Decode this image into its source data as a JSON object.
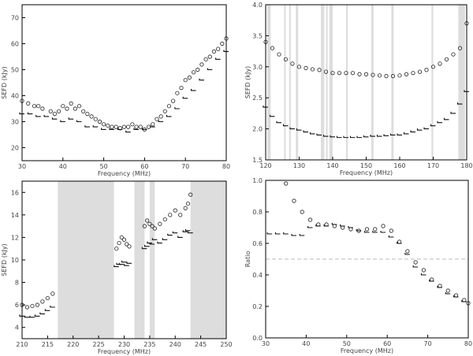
{
  "chart_data": [
    {
      "type": "scatter",
      "xlabel": "Frequency (MHz)",
      "ylabel": "SEFD (kJy)",
      "xlim": [
        30,
        80
      ],
      "ylim": [
        15,
        75
      ],
      "xticks": [
        "30",
        "40",
        "50",
        "60",
        "70",
        "80"
      ],
      "yticks": [
        "20",
        "30",
        "40",
        "50",
        "60",
        "70"
      ],
      "shaded_bands": [],
      "series": [
        {
          "marker": "circle",
          "x": [
            30,
            31.5,
            33,
            34,
            35,
            37,
            38,
            39,
            40,
            41,
            42,
            43,
            44,
            45,
            46,
            47,
            48,
            49,
            50,
            51,
            52,
            53,
            54,
            55,
            56,
            57,
            58,
            59,
            60,
            61,
            62,
            63,
            64,
            65,
            66,
            67,
            68,
            69,
            70,
            71,
            72,
            73,
            74,
            75,
            76,
            77,
            78,
            79,
            80
          ],
          "y": [
            38,
            37,
            36,
            36,
            35,
            34,
            33,
            34,
            36,
            35,
            37,
            35,
            36,
            34,
            33,
            32,
            31,
            30,
            29,
            28.5,
            28,
            28,
            27.5,
            28,
            28,
            29,
            28,
            28,
            27,
            28,
            29,
            31,
            32,
            34,
            36,
            38,
            41,
            43,
            46,
            47,
            49,
            50,
            52,
            54,
            55,
            57,
            58,
            60,
            62
          ]
        },
        {
          "marker": "step",
          "x": [
            30,
            32,
            34,
            36,
            38,
            40,
            42,
            44,
            46,
            48,
            50,
            52,
            54,
            56,
            58,
            60,
            62,
            64,
            66,
            68,
            70,
            72,
            74,
            76,
            78,
            80
          ],
          "y": [
            33,
            33,
            32,
            32,
            31,
            30,
            31,
            30,
            28,
            28,
            27,
            27,
            27,
            26,
            27,
            27,
            28,
            30,
            32,
            35,
            39,
            42,
            46,
            50,
            54,
            57
          ]
        }
      ]
    },
    {
      "type": "scatter",
      "xlabel": "Frequency (MHz)",
      "ylabel": "SEFD (kJy)",
      "xlim": [
        120,
        180
      ],
      "ylim": [
        1.5,
        4.0
      ],
      "xticks": [
        "120",
        "130",
        "140",
        "150",
        "160",
        "170",
        "180"
      ],
      "yticks": [
        "1.5",
        "2.0",
        "2.5",
        "3.0",
        "3.5",
        "4.0"
      ],
      "shaded_bands": [
        [
          120.5,
          121.5
        ],
        [
          125.5,
          126
        ],
        [
          127,
          127.5
        ],
        [
          129,
          129.7
        ],
        [
          136.5,
          137.5
        ],
        [
          138,
          138.5
        ],
        [
          139,
          140
        ],
        [
          144,
          144.5
        ],
        [
          151.5,
          152.2
        ],
        [
          157.5,
          158.2
        ],
        [
          169.5,
          170
        ],
        [
          177.5,
          179.5
        ]
      ],
      "series": [
        {
          "marker": "circle",
          "x": [
            120,
            122,
            124,
            126,
            128,
            130,
            132,
            134,
            136,
            138,
            140,
            142,
            144,
            146,
            148,
            150,
            152,
            154,
            156,
            158,
            160,
            162,
            164,
            166,
            168,
            170,
            172,
            174,
            176,
            178,
            180
          ],
          "y": [
            3.4,
            3.3,
            3.2,
            3.12,
            3.05,
            3.0,
            2.98,
            2.96,
            2.95,
            2.92,
            2.9,
            2.9,
            2.9,
            2.9,
            2.88,
            2.88,
            2.87,
            2.86,
            2.85,
            2.85,
            2.86,
            2.88,
            2.9,
            2.92,
            2.95,
            3.0,
            3.05,
            3.12,
            3.2,
            3.3,
            3.7
          ]
        },
        {
          "marker": "step",
          "x": [
            120,
            122,
            124,
            126,
            128,
            130,
            132,
            134,
            136,
            138,
            140,
            142,
            144,
            146,
            148,
            150,
            152,
            154,
            156,
            158,
            160,
            162,
            164,
            166,
            168,
            170,
            172,
            174,
            176,
            178,
            180
          ],
          "y": [
            2.35,
            2.2,
            2.1,
            2.05,
            2.0,
            1.98,
            1.95,
            1.92,
            1.9,
            1.88,
            1.87,
            1.86,
            1.86,
            1.86,
            1.86,
            1.87,
            1.88,
            1.88,
            1.89,
            1.9,
            1.9,
            1.92,
            1.95,
            1.98,
            2.0,
            2.05,
            2.1,
            2.15,
            2.25,
            2.4,
            2.6
          ]
        }
      ]
    },
    {
      "type": "scatter",
      "xlabel": "Frequency (MHz)",
      "ylabel": "SEFD (kJy)",
      "xlim": [
        210,
        250
      ],
      "ylim": [
        3,
        17
      ],
      "xticks": [
        "210",
        "215",
        "220",
        "225",
        "230",
        "235",
        "240",
        "245",
        "250"
      ],
      "yticks": [
        "4",
        "6",
        "8",
        "10",
        "12",
        "14",
        "16"
      ],
      "shaded_bands": [
        [
          217,
          228
        ],
        [
          232,
          234
        ],
        [
          235,
          236
        ],
        [
          243,
          250
        ]
      ],
      "series": [
        {
          "marker": "circle",
          "x": [
            210,
            211,
            212,
            213,
            214,
            215,
            216,
            228.5,
            229,
            229.5,
            230,
            230.5,
            231,
            234,
            234.5,
            235,
            235.5,
            236,
            237,
            238,
            239,
            240,
            241,
            242,
            242.5,
            243
          ],
          "y": [
            6.0,
            5.8,
            5.9,
            6.0,
            6.3,
            6.6,
            7.0,
            11.0,
            11.5,
            12.0,
            11.8,
            11.4,
            11.2,
            13.0,
            13.5,
            13.2,
            13.0,
            12.8,
            13.2,
            13.6,
            14.0,
            14.4,
            14.0,
            14.6,
            15.0,
            15.8
          ]
        },
        {
          "marker": "step",
          "x": [
            210,
            211,
            212,
            213,
            214,
            215,
            216,
            228.5,
            229,
            229.5,
            230,
            230.5,
            231,
            234,
            234.5,
            235,
            235.5,
            236,
            237,
            238,
            239,
            240,
            241,
            242,
            242.5,
            243
          ],
          "y": [
            5.0,
            4.9,
            4.9,
            5.0,
            5.2,
            5.5,
            5.8,
            9.4,
            9.6,
            9.6,
            9.8,
            9.5,
            9.7,
            11.0,
            11.2,
            11.5,
            11.4,
            11.8,
            11.5,
            11.8,
            12.2,
            12.4,
            12.0,
            12.5,
            12.6,
            12.4
          ]
        }
      ]
    },
    {
      "type": "scatter",
      "xlabel": "Frequency (MHz)",
      "ylabel": "Ratio",
      "xlim": [
        30,
        80
      ],
      "ylim": [
        0.0,
        1.0
      ],
      "xticks": [
        "30",
        "40",
        "50",
        "60",
        "70",
        "80"
      ],
      "yticks": [
        "0.0",
        "0.2",
        "0.4",
        "0.6",
        "0.8",
        "1.0"
      ],
      "shaded_bands": [],
      "reference_line": 0.5,
      "series": [
        {
          "marker": "circle",
          "x": [
            35,
            37,
            39,
            41,
            43,
            45,
            47,
            49,
            51,
            53,
            55,
            57,
            59,
            61,
            63,
            65,
            67,
            69,
            71,
            73,
            75,
            77,
            79,
            80
          ],
          "y": [
            0.98,
            0.87,
            0.8,
            0.75,
            0.72,
            0.72,
            0.71,
            0.7,
            0.69,
            0.68,
            0.69,
            0.69,
            0.71,
            0.68,
            0.61,
            0.55,
            0.48,
            0.43,
            0.37,
            0.33,
            0.3,
            0.27,
            0.24,
            0.22
          ]
        },
        {
          "marker": "step",
          "x": [
            31,
            33,
            35,
            37,
            39,
            41,
            43,
            45,
            47,
            49,
            51,
            53,
            55,
            57,
            59,
            61,
            63,
            65,
            67,
            69,
            71,
            73,
            75,
            77,
            79
          ],
          "y": [
            0.66,
            0.66,
            0.66,
            0.65,
            0.65,
            0.7,
            0.71,
            0.71,
            0.72,
            0.71,
            0.7,
            0.68,
            0.67,
            0.67,
            0.67,
            0.64,
            0.6,
            0.53,
            0.45,
            0.4,
            0.36,
            0.32,
            0.28,
            0.26,
            0.23
          ]
        }
      ]
    }
  ]
}
